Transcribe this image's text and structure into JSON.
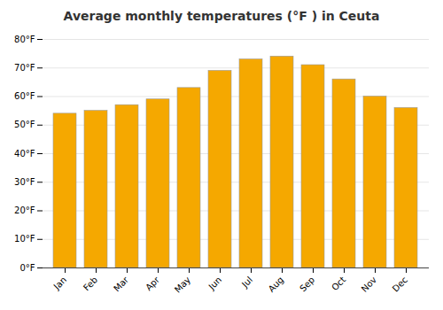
{
  "chart_data": {
    "type": "bar",
    "title": "Average monthly temperatures (°F ) in Ceuta",
    "categories": [
      "Jan",
      "Feb",
      "Mar",
      "Apr",
      "May",
      "Jun",
      "Jul",
      "Aug",
      "Sep",
      "Oct",
      "Nov",
      "Dec"
    ],
    "values": [
      54,
      55,
      57,
      59,
      63,
      69,
      73,
      74,
      71,
      66,
      60,
      56
    ],
    "color": "#F5A800",
    "ylim": [
      0,
      80
    ],
    "yticks": [
      {
        "value": 0,
        "label": "0°F"
      },
      {
        "value": 10,
        "label": "10°F"
      },
      {
        "value": 20,
        "label": "20°F"
      },
      {
        "value": 30,
        "label": "30°F"
      },
      {
        "value": 40,
        "label": "40°F"
      },
      {
        "value": 50,
        "label": "50°F"
      },
      {
        "value": 60,
        "label": "60°F"
      },
      {
        "value": 70,
        "label": "70°F"
      },
      {
        "value": 80,
        "label": "80°F"
      }
    ],
    "grid": true
  }
}
